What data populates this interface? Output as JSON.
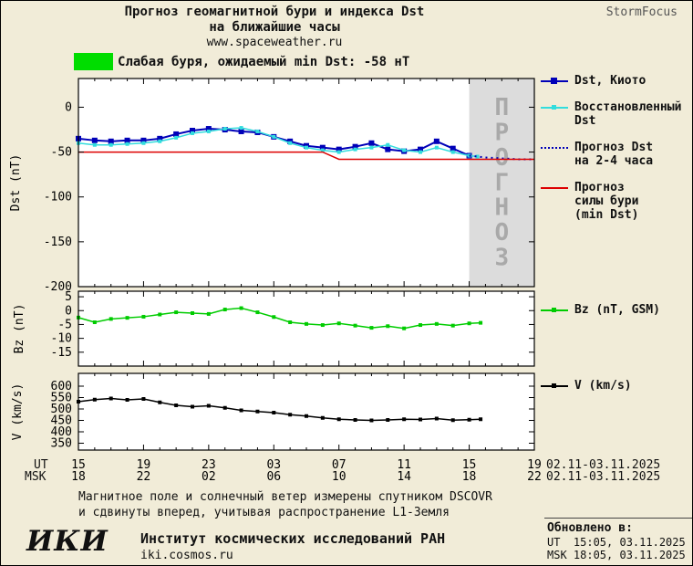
{
  "header": {
    "title_line1": "Прогноз геомагнитной бури и индекса Dst",
    "title_line2": "на ближайшие часы",
    "site": "www.spaceweather.ru",
    "brand": "StormFocus"
  },
  "alert": {
    "text": "Слабая буря, ожидаемый min Dst: -58 нТ"
  },
  "colors": {
    "alert_green": "#00dd00",
    "dst_blue": "#0000b8",
    "restored_cyan": "#33dddd",
    "forecast_red": "#dd0000",
    "bz_green": "#00cc00",
    "v_black": "#000000",
    "band_gray": "#dcdcdc"
  },
  "legend": {
    "dst_kyoto": "Dst, Киото",
    "restored": "Восстановленный\nDst",
    "forecast_dst": "Прогноз Dst\nна 2-4 часа",
    "forecast_storm": "Прогноз\nсилы бури\n(min Dst)",
    "bz": "Bz (nT, GSM)",
    "v": "V (km/s)"
  },
  "xaxis": {
    "ut_label": "UT",
    "msk_label": "MSK",
    "ut_ticks": [
      "15",
      "19",
      "23",
      "03",
      "07",
      "11",
      "15",
      "19"
    ],
    "msk_ticks": [
      "18",
      "22",
      "02",
      "06",
      "10",
      "14",
      "18",
      "22"
    ],
    "date_range_ut": "02.11-03.11.2025",
    "date_range_msk": "02.11-03.11.2025"
  },
  "footer": {
    "note_line1": "Магнитное поле и солнечный ветер измерены спутником DSCOVR",
    "note_line2": "и сдвинуты вперед, учитывая распространение L1-Земля",
    "logo": "ИКИ",
    "institute": "Институт космических исследований РАН",
    "site": "iki.cosmos.ru",
    "updated_label": "Обновлено в:",
    "updated_ut": "UT  15:05, 03.11.2025",
    "updated_msk": "MSK 18:05, 03.11.2025"
  },
  "chart_data": [
    {
      "type": "line",
      "panel": "dst",
      "title": "",
      "xlabel": "",
      "ylabel": "Dst (nT)",
      "xlim": [
        0,
        28
      ],
      "ylim": [
        -200,
        32
      ],
      "yticks": [
        0,
        -50,
        -100,
        -150,
        -200
      ],
      "xticks": [
        0,
        4,
        8,
        12,
        16,
        20,
        24,
        28
      ],
      "forecast_band": {
        "start": 24,
        "end": 28,
        "label": "ПРОГНОЗ",
        "color": "#dcdcdc",
        "label_color": "#a9a9a9"
      },
      "series": [
        {
          "name": "Dst, Киото",
          "color": "#0000b8",
          "width": 2,
          "marker": "square",
          "marker_size": 6,
          "x": [
            0,
            1,
            2,
            3,
            4,
            5,
            6,
            7,
            8,
            9,
            10,
            11,
            12,
            13,
            14,
            15,
            16,
            17,
            18,
            19,
            20,
            21,
            22,
            23,
            24
          ],
          "y": [
            -35,
            -37,
            -38,
            -37,
            -37,
            -35,
            -30,
            -26,
            -24,
            -25,
            -27,
            -28,
            -33,
            -38,
            -43,
            -45,
            -47,
            -44,
            -40,
            -47,
            -49,
            -47,
            -38,
            -46,
            -54
          ]
        },
        {
          "name": "Восстановленный Dst",
          "color": "#33dddd",
          "width": 1.5,
          "marker": "square",
          "marker_size": 4,
          "x": [
            0,
            1,
            2,
            3,
            4,
            5,
            6,
            7,
            8,
            9,
            10,
            11,
            12,
            13,
            14,
            15,
            16,
            17,
            18,
            19,
            20,
            21,
            22,
            23,
            24,
            24.5
          ],
          "y": [
            -40,
            -42,
            -42,
            -41,
            -40,
            -38,
            -34,
            -29,
            -27,
            -24,
            -23,
            -27,
            -33,
            -40,
            -45,
            -48,
            -50,
            -47,
            -45,
            -42,
            -48,
            -50,
            -45,
            -50,
            -54,
            -55
          ]
        },
        {
          "name": "Прогноз Dst на 2-4 часа",
          "color": "#0000b8",
          "width": 2,
          "dash": "2,4",
          "x": [
            24,
            25,
            26,
            27,
            28
          ],
          "y": [
            -54,
            -56,
            -57,
            -58,
            -58
          ]
        },
        {
          "name": "Прогноз силы бури (min Dst)",
          "color": "#dd0000",
          "width": 1.5,
          "x": [
            0,
            15,
            16,
            28
          ],
          "y": [
            -50,
            -50,
            -58,
            -58
          ]
        }
      ]
    },
    {
      "type": "line",
      "panel": "bz",
      "title": "",
      "xlabel": "",
      "ylabel": "Bz (nT)",
      "xlim": [
        0,
        28
      ],
      "ylim": [
        -20,
        7
      ],
      "yticks": [
        5,
        0,
        -5,
        -10,
        -15
      ],
      "xticks": [
        0,
        4,
        8,
        12,
        16,
        20,
        24,
        28
      ],
      "series": [
        {
          "name": "Bz (nT, GSM)",
          "color": "#00cc00",
          "width": 1.5,
          "marker": "square",
          "marker_size": 4,
          "x": [
            0,
            1,
            2,
            3,
            4,
            5,
            6,
            7,
            8,
            9,
            10,
            11,
            12,
            13,
            14,
            15,
            16,
            17,
            18,
            19,
            20,
            21,
            22,
            23,
            24,
            24.7
          ],
          "y": [
            -2.5,
            -4.2,
            -3,
            -2.6,
            -2.2,
            -1.4,
            -0.6,
            -0.9,
            -1.2,
            0.4,
            0.9,
            -0.6,
            -2.3,
            -4.2,
            -4.8,
            -5.2,
            -4.6,
            -5.4,
            -6.2,
            -5.6,
            -6.4,
            -5.2,
            -4.8,
            -5.4,
            -4.6,
            -4.4
          ]
        }
      ]
    },
    {
      "type": "line",
      "panel": "v",
      "title": "",
      "xlabel": "",
      "ylabel": "V (km/s)",
      "xlim": [
        0,
        28
      ],
      "ylim": [
        320,
        656
      ],
      "yticks": [
        600,
        550,
        500,
        450,
        400,
        350
      ],
      "xticks": [
        0,
        4,
        8,
        12,
        16,
        20,
        24,
        28
      ],
      "series": [
        {
          "name": "V (km/s)",
          "color": "#000000",
          "width": 1.5,
          "marker": "square",
          "marker_size": 4,
          "x": [
            0,
            1,
            2,
            3,
            4,
            5,
            6,
            7,
            8,
            9,
            10,
            11,
            12,
            13,
            14,
            15,
            16,
            17,
            18,
            19,
            20,
            21,
            22,
            23,
            24,
            24.7
          ],
          "y": [
            532,
            541,
            546,
            540,
            544,
            529,
            516,
            510,
            514,
            505,
            494,
            489,
            484,
            475,
            469,
            461,
            455,
            452,
            450,
            452,
            455,
            454,
            458,
            451,
            453,
            455
          ]
        }
      ]
    }
  ]
}
